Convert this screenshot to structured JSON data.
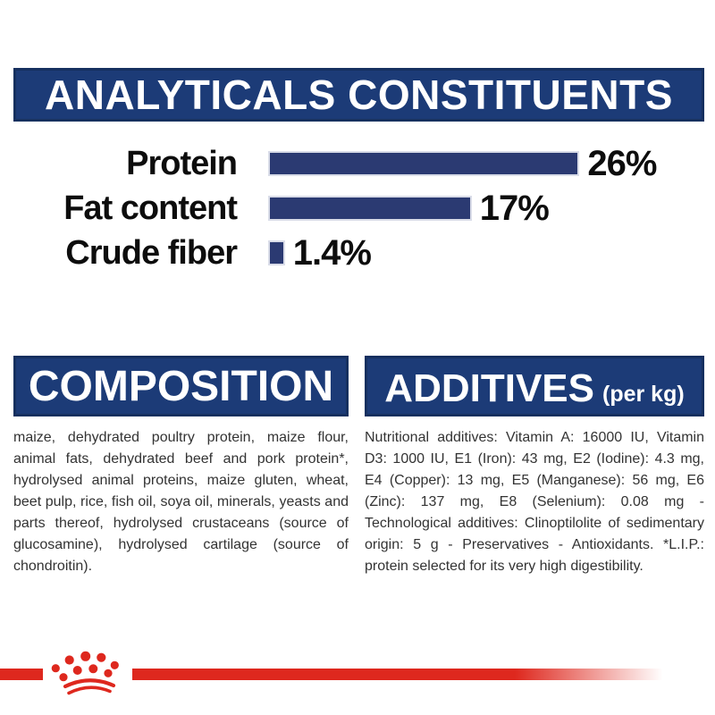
{
  "header": {
    "title": "ANALYTICALS CONSTITUENTS"
  },
  "chart_data": {
    "type": "bar",
    "orientation": "horizontal",
    "categories": [
      "Protein",
      "Fat content",
      "Crude fiber"
    ],
    "values": [
      26,
      17,
      1.4
    ],
    "value_labels": [
      "26%",
      "17%",
      "1.4%"
    ],
    "unit": "%",
    "xlim": [
      0,
      30
    ],
    "grid": false,
    "legend": false,
    "bar_color": "#2B3A72"
  },
  "sections": {
    "composition": {
      "title": "COMPOSITION",
      "body": "maize, dehydrated poultry protein, maize flour, animal fats, dehydrated beef and pork protein*, hydrolysed animal proteins, maize gluten, wheat, beet pulp, rice, fish oil, soya oil, minerals, yeasts and parts thereof, hydrolysed crustaceans (source of glucosamine), hydrolysed cartilage (source of chondroitin)."
    },
    "additives": {
      "title": "ADDITIVES",
      "title_suffix": "(per kg)",
      "body": "Nutritional additives: Vitamin A: 16000 IU, Vitamin D3: 1000 IU, E1 (Iron): 43 mg, E2 (Iodine): 4.3 mg, E4 (Copper): 13 mg, E5 (Manganese): 56 mg, E6 (Zinc): 137 mg, E8 (Selenium): 0.08 mg - Technological additives: Clinoptilolite of sedimentary origin: 5 g - Preservatives - Antioxidants. *L.I.P.: protein selected for its very high digestibility."
    }
  },
  "footer": {
    "logo": "royal-canin-crown"
  },
  "colors": {
    "banner_navy": "#1C3B77",
    "banner_border": "#16305F",
    "bar_navy": "#2B3A72",
    "text_dark": "#333333",
    "brand_red": "#DE281E"
  }
}
